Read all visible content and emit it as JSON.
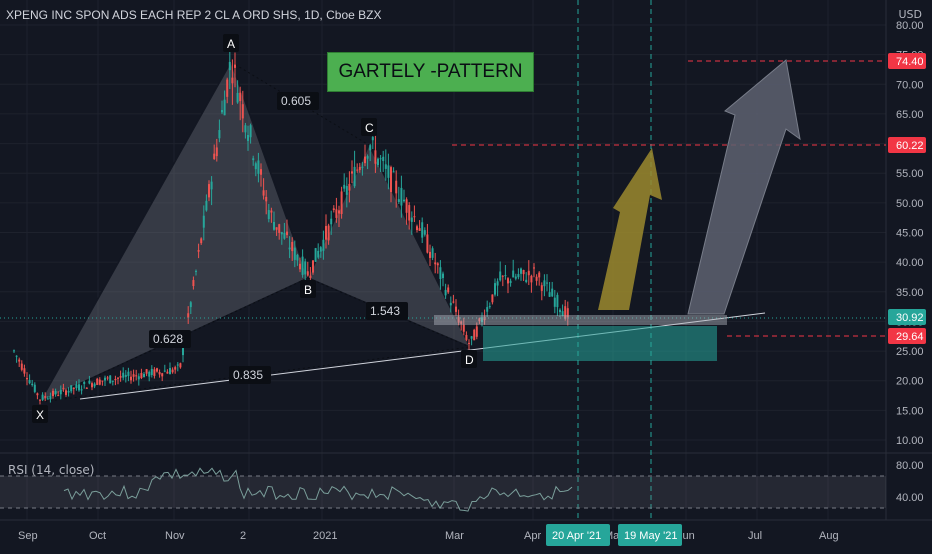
{
  "header": {
    "symbol_title": "XPENG INC SPON ADS EACH REP 2 CL A ORD SHS, 1D, Cboe BZX",
    "currency": "USD"
  },
  "banner": {
    "text": "GARTELY -PATTERN",
    "color": "#4caf50"
  },
  "rsi": {
    "label": "RSI (14, close)",
    "ticks": [
      "80.00",
      "40.00"
    ]
  },
  "chart_data": {
    "type": "candlestick",
    "price_ticks": [
      "80.00",
      "75.00",
      "70.00",
      "65.00",
      "60.00",
      "55.00",
      "50.00",
      "45.00",
      "40.00",
      "35.00",
      "30.00",
      "25.00",
      "20.00",
      "15.00",
      "10.00"
    ],
    "price_tick_values": [
      80,
      75,
      70,
      65,
      60,
      55,
      50,
      45,
      40,
      35,
      30,
      25,
      20,
      15,
      10
    ],
    "ylim": [
      7.5,
      81.5
    ],
    "x_ticks": [
      "Sep",
      "Oct",
      "Nov",
      "2",
      "2021",
      "Mar",
      "Apr",
      "May",
      "Jun",
      "Jul",
      "Aug"
    ],
    "date_markers": [
      "20 Apr '21",
      "19 May '21"
    ],
    "price_labels": [
      {
        "text": "74.40",
        "value": 74.4,
        "color": "#f23645"
      },
      {
        "text": "60.22",
        "value": 60.22,
        "color": "#f23645"
      },
      {
        "text": "30.92",
        "value": 30.92,
        "color": "#26a69a"
      },
      {
        "text": "29.64",
        "value": 29.64,
        "color": "#f23645"
      }
    ],
    "gartley_points": [
      {
        "label": "X",
        "price": 17
      },
      {
        "label": "A",
        "price": 74
      },
      {
        "label": "B",
        "price": 38
      },
      {
        "label": "C",
        "price": 60
      },
      {
        "label": "D",
        "price": 26
      }
    ],
    "ratios": [
      "0.605",
      "0.628",
      "1.543",
      "0.835"
    ],
    "colors": {
      "up": "#26a69a",
      "down": "#ef5350",
      "arrow_gold": "#9c8a2e",
      "arrow_grey": "#5d6170",
      "zone": "#26a69a"
    }
  }
}
